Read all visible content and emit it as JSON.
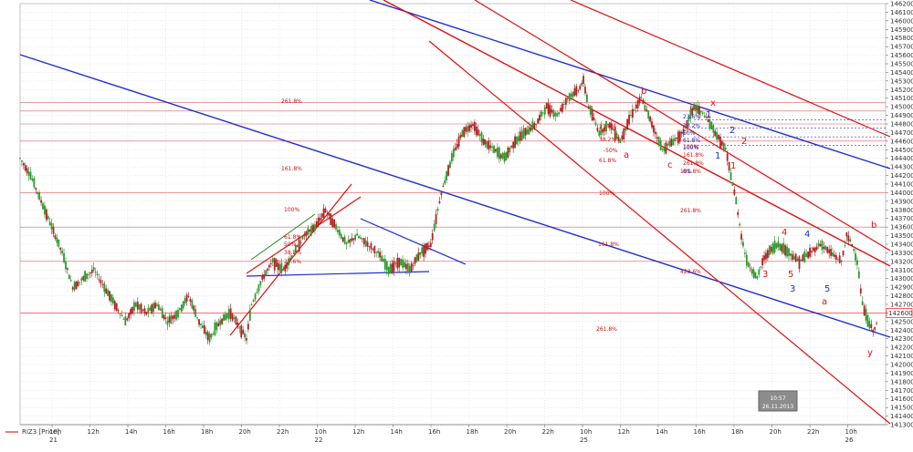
{
  "chart_data": {
    "type": "candlestick",
    "instrument_label": "RIZ3 [Price]",
    "y_min": 141300,
    "y_max": 146200,
    "y_step": 100,
    "y_ticks_shown": [
      146200,
      146100,
      146000,
      145900,
      145800,
      145700,
      145600,
      145500,
      145400,
      145300,
      145200,
      145100,
      145000,
      144900,
      144800,
      144700,
      144600,
      144500,
      144400,
      144300,
      144200,
      144100,
      144000,
      143900,
      143800,
      143700,
      143600,
      143500,
      143400,
      143300,
      143200,
      143100,
      143000,
      142900,
      142800,
      142700,
      142500,
      142400,
      142300,
      142200,
      142100,
      142000,
      141900,
      141800,
      141700,
      141600,
      141500,
      141400,
      141300
    ],
    "current_price": 142600,
    "current_price_label": "142600",
    "x_ticks": [
      {
        "label": "10h",
        "day": "21"
      },
      {
        "label": "12h",
        "day": ""
      },
      {
        "label": "14h",
        "day": ""
      },
      {
        "label": "16h",
        "day": ""
      },
      {
        "label": "18h",
        "day": ""
      },
      {
        "label": "20h",
        "day": ""
      },
      {
        "label": "22h",
        "day": ""
      },
      {
        "label": "10h",
        "day": "22"
      },
      {
        "label": "12h",
        "day": ""
      },
      {
        "label": "14h",
        "day": ""
      },
      {
        "label": "16h",
        "day": ""
      },
      {
        "label": "18h",
        "day": ""
      },
      {
        "label": "20h",
        "day": ""
      },
      {
        "label": "22h",
        "day": ""
      },
      {
        "label": "10h",
        "day": "25"
      },
      {
        "label": "12h",
        "day": ""
      },
      {
        "label": "14h",
        "day": ""
      },
      {
        "label": "16h",
        "day": ""
      },
      {
        "label": "18h",
        "day": ""
      },
      {
        "label": "20h",
        "day": ""
      },
      {
        "label": "22h",
        "day": ""
      },
      {
        "label": "10h",
        "day": "26"
      }
    ],
    "price_path": [
      [
        0,
        144400
      ],
      [
        2,
        144200
      ],
      [
        4,
        143900
      ],
      [
        6,
        143600
      ],
      [
        8,
        143300
      ],
      [
        10,
        142900
      ],
      [
        12,
        143000
      ],
      [
        14,
        143100
      ],
      [
        16,
        142900
      ],
      [
        18,
        142700
      ],
      [
        20,
        142500
      ],
      [
        22,
        142700
      ],
      [
        24,
        142600
      ],
      [
        26,
        142700
      ],
      [
        28,
        142500
      ],
      [
        30,
        142600
      ],
      [
        32,
        142800
      ],
      [
        34,
        142500
      ],
      [
        36,
        142300
      ],
      [
        38,
        142500
      ],
      [
        40,
        142600
      ],
      [
        42,
        142400
      ],
      [
        43,
        142300
      ],
      [
        44,
        142700
      ],
      [
        46,
        143000
      ],
      [
        48,
        143200
      ],
      [
        50,
        143100
      ],
      [
        52,
        143300
      ],
      [
        54,
        143500
      ],
      [
        56,
        143600
      ],
      [
        58,
        143800
      ],
      [
        60,
        143600
      ],
      [
        62,
        143400
      ],
      [
        64,
        143500
      ],
      [
        66,
        143400
      ],
      [
        68,
        143300
      ],
      [
        70,
        143100
      ],
      [
        72,
        143200
      ],
      [
        74,
        143100
      ],
      [
        76,
        143300
      ],
      [
        78,
        143400
      ],
      [
        80,
        144000
      ],
      [
        82,
        144400
      ],
      [
        84,
        144700
      ],
      [
        86,
        144800
      ],
      [
        88,
        144600
      ],
      [
        90,
        144500
      ],
      [
        92,
        144400
      ],
      [
        94,
        144600
      ],
      [
        96,
        144700
      ],
      [
        98,
        144800
      ],
      [
        100,
        145000
      ],
      [
        102,
        144900
      ],
      [
        104,
        145100
      ],
      [
        106,
        145200
      ],
      [
        107,
        145300
      ],
      [
        108,
        145000
      ],
      [
        110,
        144700
      ],
      [
        112,
        144800
      ],
      [
        114,
        144600
      ],
      [
        116,
        144900
      ],
      [
        118,
        145100
      ],
      [
        120,
        144800
      ],
      [
        122,
        144500
      ],
      [
        124,
        144600
      ],
      [
        126,
        144700
      ],
      [
        128,
        145000
      ],
      [
        130,
        144900
      ],
      [
        132,
        144700
      ],
      [
        134,
        144500
      ],
      [
        136,
        143900
      ],
      [
        137,
        143500
      ],
      [
        138,
        143200
      ],
      [
        139,
        143100
      ],
      [
        140,
        143000
      ],
      [
        141,
        143200
      ],
      [
        142,
        143300
      ],
      [
        144,
        143400
      ],
      [
        146,
        143300
      ],
      [
        148,
        143200
      ],
      [
        150,
        143300
      ],
      [
        152,
        143400
      ],
      [
        154,
        143300
      ],
      [
        156,
        143200
      ],
      [
        157,
        143500
      ],
      [
        158,
        143400
      ],
      [
        159,
        143200
      ],
      [
        160,
        142700
      ],
      [
        161,
        142500
      ],
      [
        162,
        142400
      ],
      [
        163,
        142500
      ]
    ],
    "price_path_x_max": 163,
    "labels": {
      "fib_levels": [
        "261.8%",
        "161.8%",
        "100%",
        "61.8%",
        "50%",
        "38.2%",
        "23.6%",
        "0%",
        "-50%",
        "23.6%",
        "38.2%",
        "61.8%",
        "100%",
        "161.8%",
        "261.8%",
        "161.8%",
        "423.6%",
        "261.8%",
        "100%",
        "161.8%",
        "261.8%",
        "0%",
        "23.6%",
        "38.2%",
        "50%",
        "61.8%",
        "100%"
      ],
      "waves_red": [
        "b",
        "a",
        "c",
        "x",
        "2",
        "1",
        "4",
        "3",
        "5",
        "a",
        "b",
        "y"
      ],
      "waves_blue": [
        "1",
        "4",
        "3",
        "5",
        "1",
        "2"
      ]
    },
    "cursor_box": {
      "time": "10:57",
      "date": "26.11.2013"
    }
  }
}
